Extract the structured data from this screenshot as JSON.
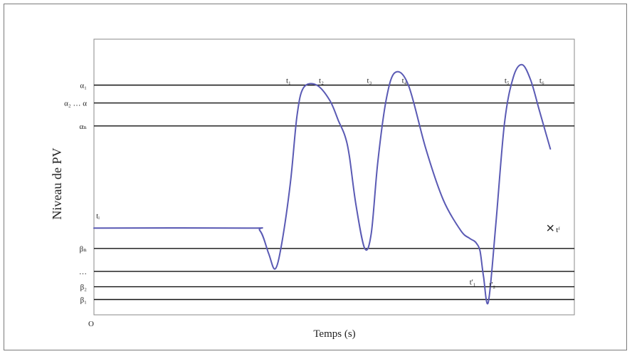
{
  "chart_data": {
    "type": "line",
    "title": "",
    "xlabel": "Temps (s)",
    "ylabel": "Niveau de PV",
    "origin_label": "O",
    "thresholds": [
      {
        "label": "α₁",
        "value": 90
      },
      {
        "label": "α₂ … α",
        "value": 83
      },
      {
        "label": "αₙ",
        "value": 74
      },
      {
        "label": "βₙ",
        "value": 26
      },
      {
        "label": "…",
        "value": 17
      },
      {
        "label": "β₂",
        "value": 11
      },
      {
        "label": "β₁",
        "value": 6
      }
    ],
    "series": [
      {
        "color": "#5a5ab4",
        "x": [
          0,
          35,
          38,
          40,
          41.5,
          43,
          45,
          46.5,
          48,
          51,
          54,
          56,
          57.5,
          58.5,
          60,
          62,
          63.5,
          65,
          67,
          69,
          72,
          76,
          80,
          84,
          86,
          87,
          87.6,
          88.4,
          89.2,
          90.3,
          92,
          94,
          96,
          98,
          100,
          102,
          104.5
        ],
        "y": [
          34,
          34,
          33,
          24,
          18,
          28,
          52,
          78,
          89,
          90,
          84,
          76,
          70,
          62,
          43,
          26,
          32,
          60,
          85,
          95,
          90,
          65,
          45,
          33,
          30,
          29,
          28,
          25,
          15,
          5,
          35,
          75,
          93,
          98,
          92,
          80,
          65
        ]
      }
    ],
    "annotations": [
      {
        "label": "tᵢ",
        "x": 0.5,
        "y": 37
      },
      {
        "label": "t₁",
        "x": 44,
        "y": 90
      },
      {
        "label": "t₂",
        "x": 51.5,
        "y": 90
      },
      {
        "label": "t₃",
        "x": 62.5,
        "y": 90
      },
      {
        "label": "t₄",
        "x": 70.5,
        "y": 90
      },
      {
        "label": "t₅",
        "x": 94,
        "y": 90
      },
      {
        "label": "t₆",
        "x": 102,
        "y": 90
      },
      {
        "label": "t'₁",
        "x": 86,
        "y": 11
      },
      {
        "label": "t'₂",
        "x": 90.5,
        "y": 10
      },
      {
        "label": "tᶠ",
        "x": 104.5,
        "y": 34
      }
    ],
    "end_marker": {
      "x": 104.5,
      "y": 34
    },
    "xlim": [
      0,
      110
    ],
    "ylim": [
      0,
      108
    ],
    "grid": false,
    "legend": "none"
  }
}
